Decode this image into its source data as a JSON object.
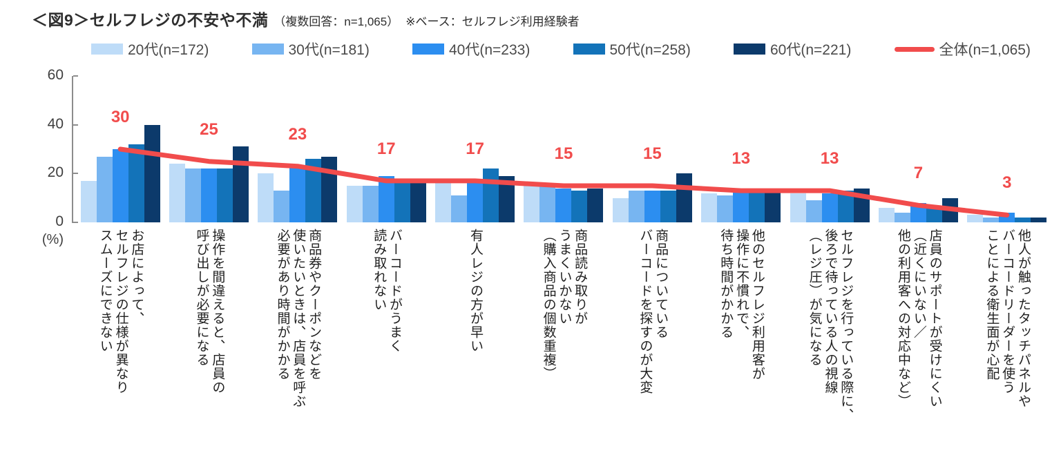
{
  "header": {
    "title": "＜図9＞セルフレジの不安や不満",
    "subtitle": "（複数回答：n=1,065）",
    "note": "※ベース：セルフレジ利用経験者"
  },
  "chart_data": {
    "type": "bar",
    "title": "＜図9＞セルフレジの不安や不満",
    "subtitle": "（複数回答：n=1,065）",
    "note": "※ベース：セルフレジ利用経験者",
    "unit_label": "(%)",
    "ylim": [
      0,
      60
    ],
    "y_ticks": [
      0,
      20,
      40,
      60
    ],
    "grid": false,
    "legend_position": "top",
    "categories": [
      "お店によって、\nセルフレジの仕様が異なり\nスムーズにできない",
      "操作を間違えると、店員の\n呼び出しが必要になる",
      "商品券やクーポンなどを\n使いたいときは、店員を呼ぶ\n必要があり時間がかかる",
      "バーコードがうまく\n読み取れない",
      "有人レジの方が早い",
      "商品読み取りが\nうまくいかない\n（購入商品の個数重複）",
      "商品についている\nバーコードを探すのが大変",
      "他のセルフレジ利用客が\n操作に不慣れで、\n待ち時間がかかる",
      "セルフレジを行っている際に、\n後ろで待っている人の視線\n（レジ圧）が気になる",
      "店員のサポートが受けにくい\n（近くにいない／\n他の利用客への対応中など）",
      "他人が触ったタッチパネルや\nバーコードリーダーを使う\nことによる衛生面が心配"
    ],
    "series": [
      {
        "name": "20代(n=172)",
        "color": "#BEDCF8",
        "values": [
          17,
          24,
          20,
          15,
          16,
          15,
          10,
          12,
          12,
          6,
          3
        ]
      },
      {
        "name": "30代(n=181)",
        "color": "#77B5F1",
        "values": [
          27,
          22,
          13,
          15,
          11,
          15,
          13,
          11,
          9,
          4,
          2
        ]
      },
      {
        "name": "40代(n=233)",
        "color": "#2C8EF0",
        "values": [
          30,
          22,
          23,
          19,
          16,
          14,
          13,
          14,
          12,
          8,
          4
        ]
      },
      {
        "name": "50代(n=258)",
        "color": "#1373B9",
        "values": [
          32,
          22,
          26,
          17,
          22,
          13,
          13,
          13,
          13,
          6,
          2
        ]
      },
      {
        "name": "60代(n=221)",
        "color": "#0C3A6B",
        "values": [
          40,
          31,
          27,
          17,
          19,
          14,
          20,
          13,
          14,
          10,
          2
        ]
      }
    ],
    "line_series": {
      "name": "全体(n=1,065)",
      "color": "#F14C4C",
      "values": [
        30,
        25,
        23,
        17,
        17,
        15,
        15,
        13,
        13,
        7,
        3
      ]
    }
  }
}
